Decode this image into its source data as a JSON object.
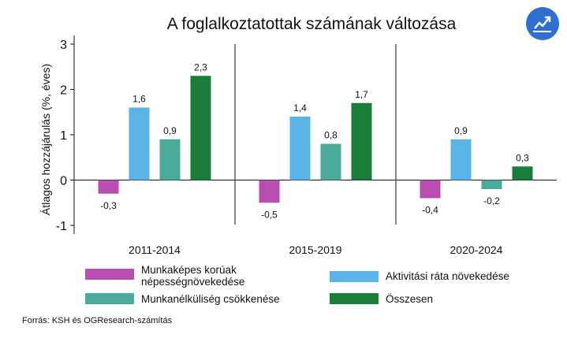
{
  "chart_data": {
    "type": "bar",
    "title": "A foglalkoztatottak számának változása",
    "ylabel": "Átlagos hozzájárulás  (%, éves)",
    "xlabel": "",
    "ylim": [
      -1.2,
      3.2
    ],
    "yticks": [
      -1,
      0,
      1,
      2,
      3
    ],
    "ytick_labels": [
      "-1",
      "0",
      "1",
      "2",
      "3"
    ],
    "categories": [
      "2011-2014",
      "2015-2019",
      "2020-2024"
    ],
    "series": [
      {
        "name": "Munkaképes korúak népességnövekedése",
        "color": "#b84fb0",
        "values": [
          -0.3,
          -0.5,
          -0.4
        ],
        "labels": [
          "-0,3",
          "-0,5",
          "-0,4"
        ]
      },
      {
        "name": "Aktivitási ráta növekedése",
        "color": "#5ab4e6",
        "values": [
          1.6,
          1.4,
          0.9
        ],
        "labels": [
          "1,6",
          "1,4",
          "0,9"
        ]
      },
      {
        "name": "Munkanélküliség csökkenése",
        "color": "#4aab9a",
        "values": [
          0.9,
          0.8,
          -0.2
        ],
        "labels": [
          "0,9",
          "0,8",
          "-0,2"
        ]
      },
      {
        "name": "Összesen",
        "color": "#1b7d3a",
        "values": [
          2.3,
          1.7,
          0.3
        ],
        "labels": [
          "2,3",
          "1,7",
          "0,3"
        ]
      }
    ],
    "legend_position": "bottom",
    "grid": false
  },
  "legend": {
    "item1_line1": "Munkaképes korúak",
    "item1_line2": "népességnövekedése",
    "item2": "Aktivitási ráta növekedése",
    "item3": "Munkanélküliség csökkenése",
    "item4": "Összesen"
  },
  "source": "Forrás: KSH és OGResearch-számítás",
  "icon": "trend-chart-icon",
  "colors": {
    "badge": "#2f6fcf"
  }
}
